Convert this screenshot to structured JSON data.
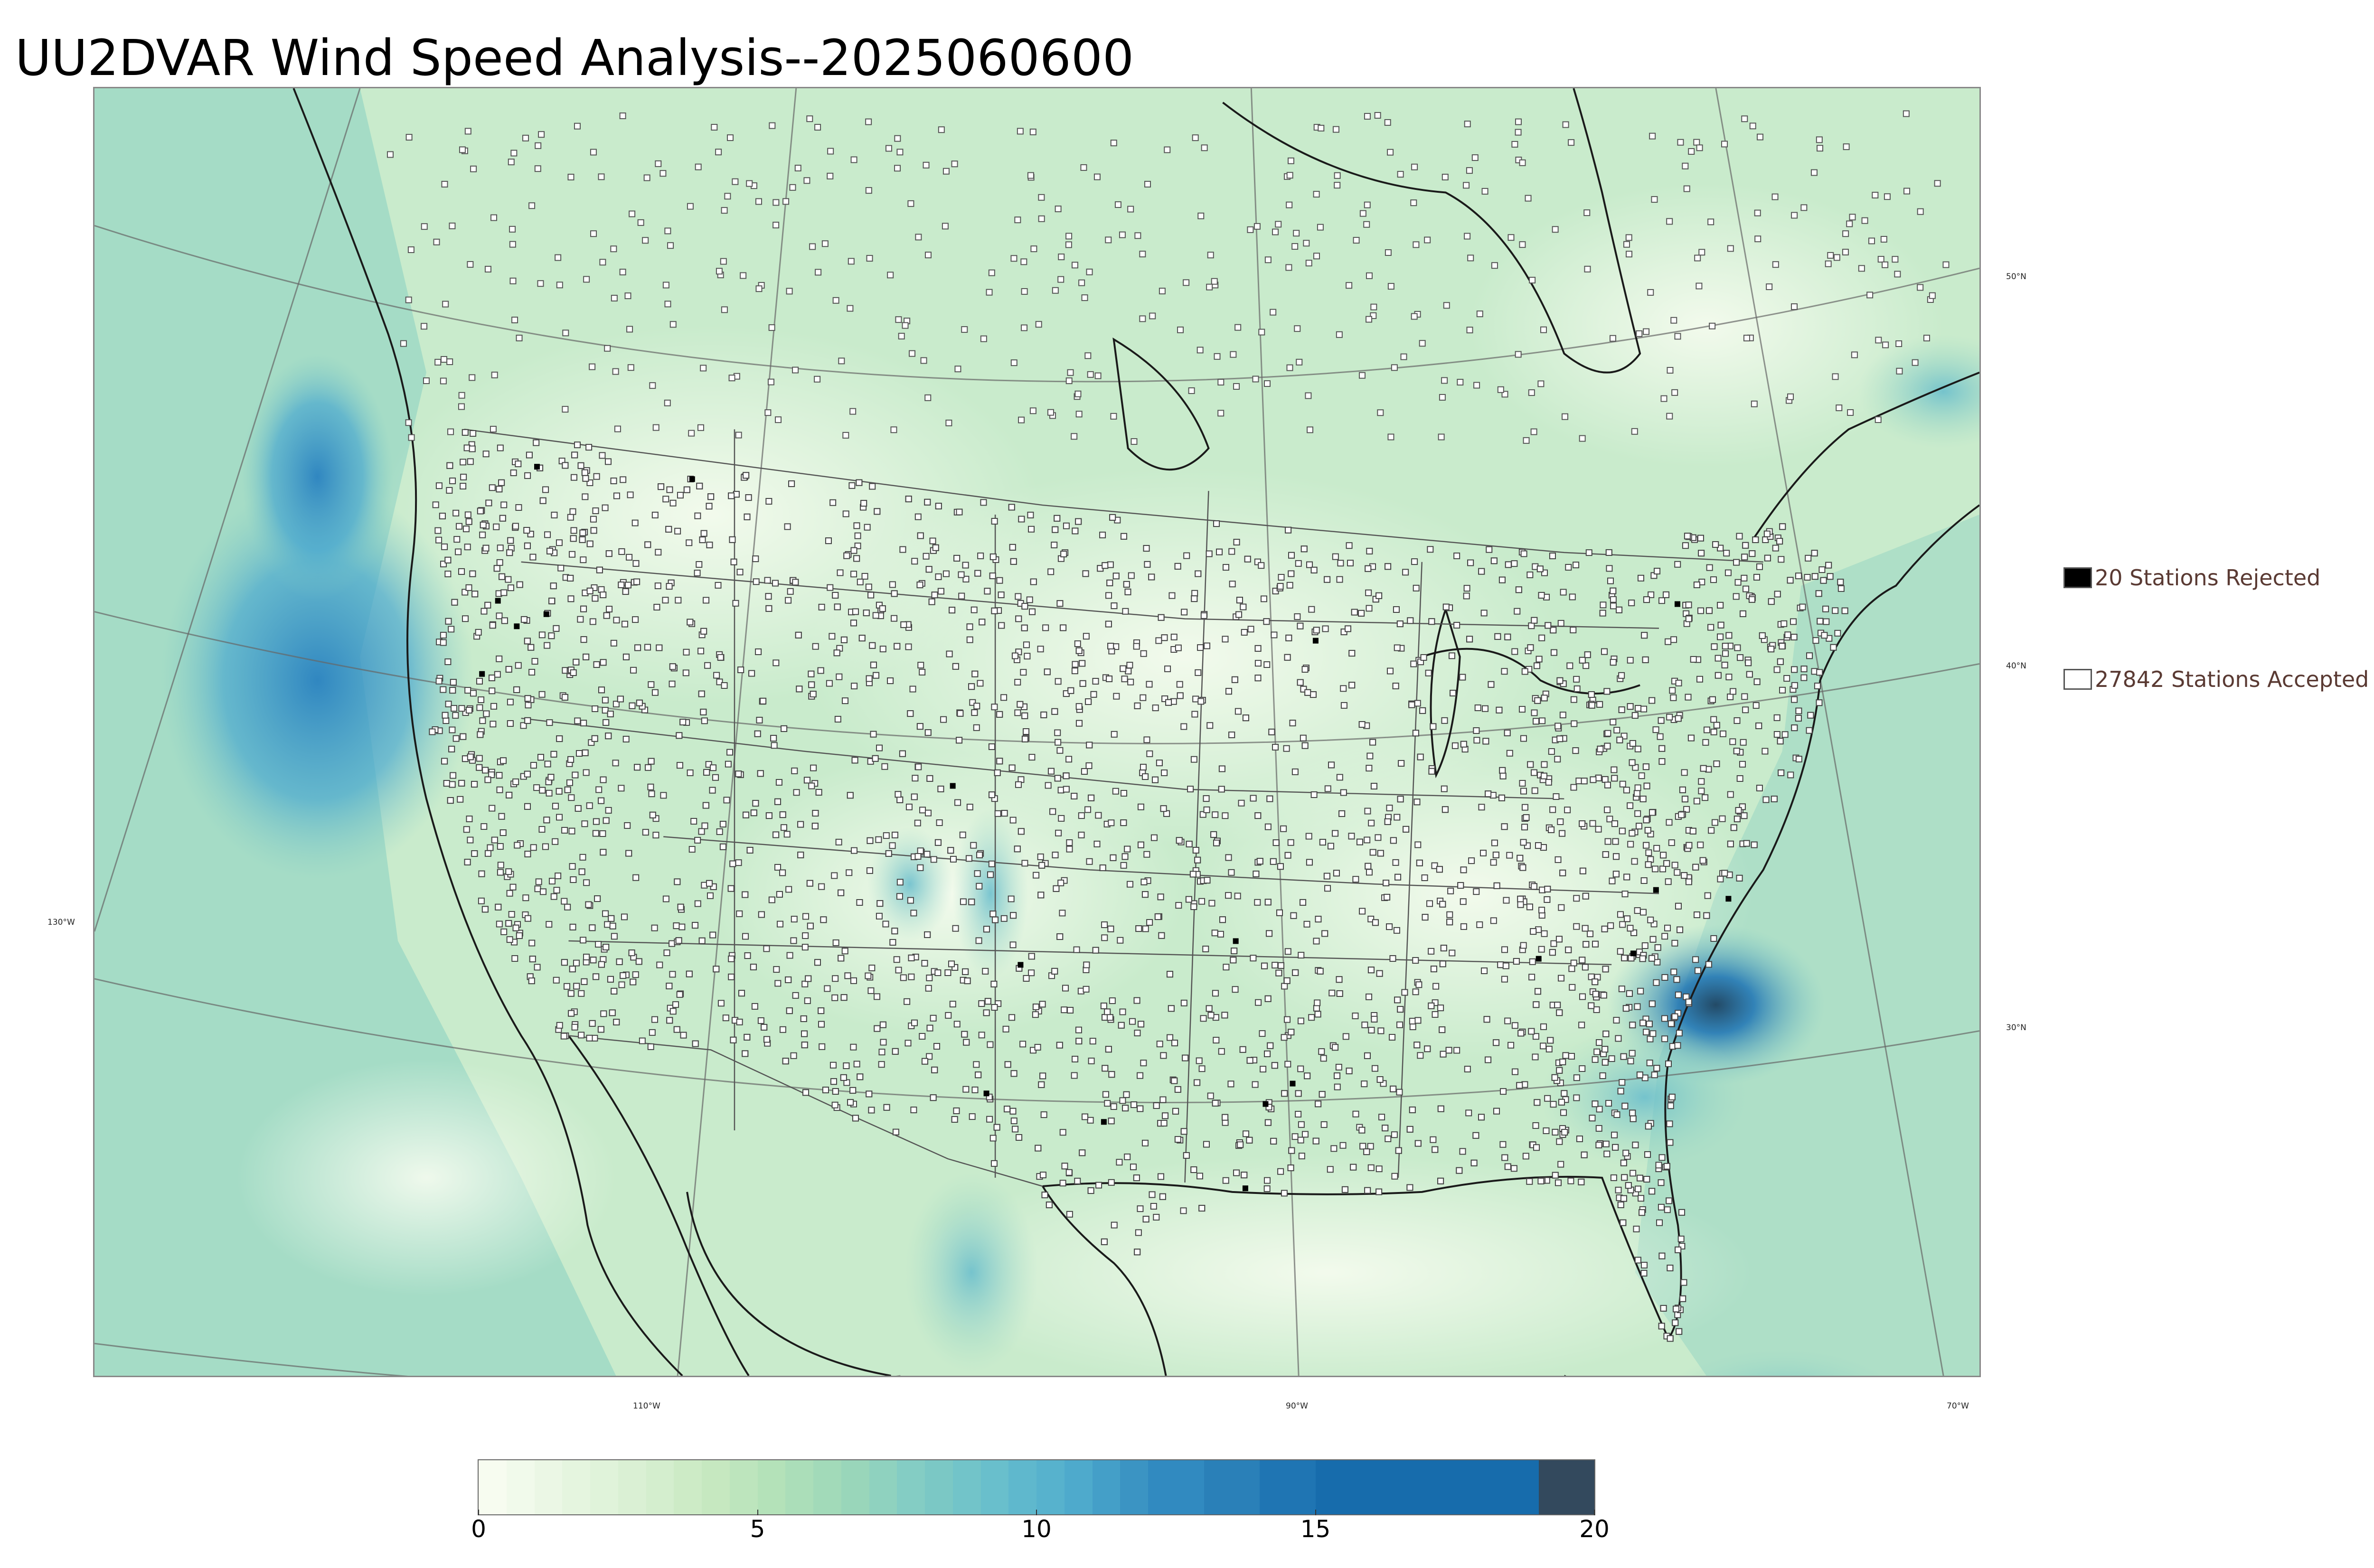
{
  "title": "UU2DVAR Wind Speed Analysis--2025060600",
  "map": {
    "region": "Continental United States",
    "field": "wind speed",
    "latitude_labels": [
      "50°N",
      "40°N",
      "30°N"
    ],
    "longitude_labels": [
      "130°W",
      "110°W",
      "90°W",
      "70°W"
    ],
    "colors": {
      "land_background": "#c9ebcc",
      "ocean_background": "#9fd9c4",
      "coastline": "#1a1a1a",
      "borders": "#555555",
      "graticule": "#666666",
      "station_accepted": "#ffffff",
      "station_rejected": "#000000"
    }
  },
  "legend": {
    "rejected": {
      "label": "20 Stations Rejected",
      "count": 20,
      "icon": "filled-square"
    },
    "accepted": {
      "label": "27842 Stations Accepted",
      "count": 27842,
      "icon": "open-square"
    }
  },
  "colorbar": {
    "min": 0,
    "max": 20,
    "ticks": [
      "0",
      "5",
      "10",
      "15",
      "20"
    ],
    "bounds": [
      0,
      0.5,
      1,
      1.5,
      2,
      2.5,
      3,
      3.5,
      4,
      4.5,
      5,
      5.5,
      6,
      6.5,
      7,
      7.5,
      8,
      8.5,
      9,
      9.5,
      10,
      10.5,
      11,
      11.5,
      12,
      13,
      14,
      15,
      19,
      20
    ],
    "colors": [
      "#f7fcf0",
      "#f1faeb",
      "#ebf7e5",
      "#e5f5df",
      "#e0f3da",
      "#daf0d4",
      "#d4eece",
      "#cdebc6",
      "#c6e8c0",
      "#bde5bd",
      "#b4e2b9",
      "#abdeb9",
      "#a2dab9",
      "#99d6ba",
      "#8fd2bf",
      "#84cdc4",
      "#7bc8c5",
      "#72c4c9",
      "#69bfcc",
      "#5fb8cd",
      "#57b2cd",
      "#4eaacc",
      "#449fc8",
      "#3b94c3",
      "#318ac0",
      "#2a80b8",
      "#1f75b3",
      "#176cac",
      "#33495d"
    ]
  }
}
